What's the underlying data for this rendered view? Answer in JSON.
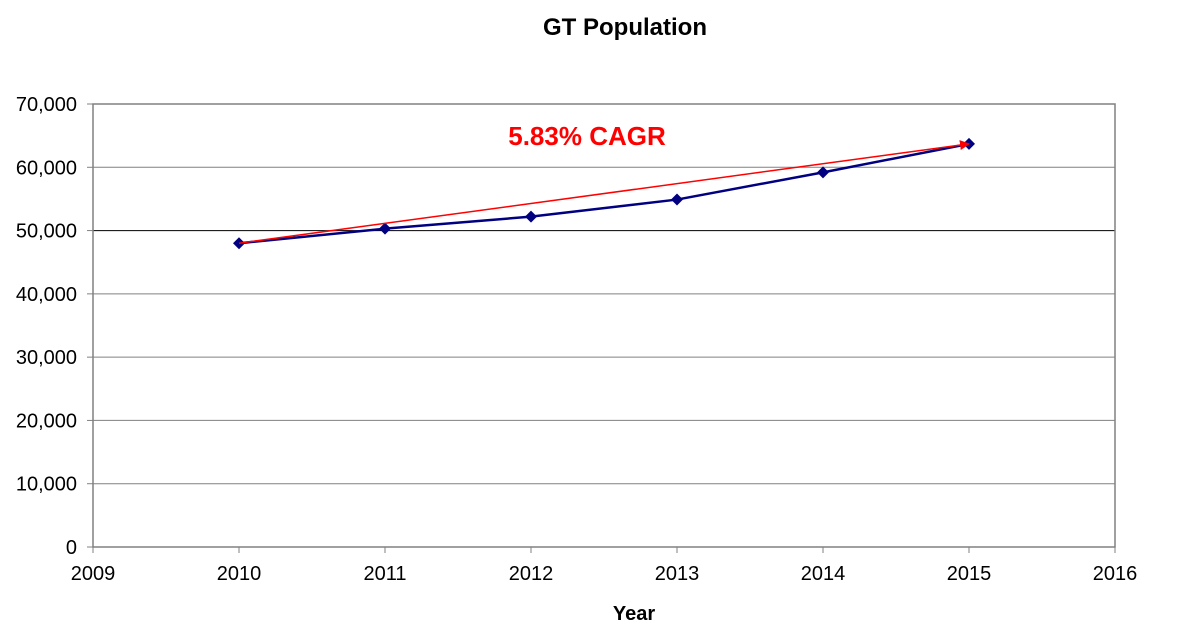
{
  "chart_data": {
    "type": "line",
    "title": "GT Population",
    "xlabel": "Year",
    "ylabel": "",
    "xlim": [
      2009,
      2016
    ],
    "ylim": [
      0,
      70000
    ],
    "x_ticks": [
      "2009",
      "2010",
      "2011",
      "2012",
      "2013",
      "2014",
      "2015",
      "2016"
    ],
    "y_ticks": [
      "0",
      "10,000",
      "20,000",
      "30,000",
      "40,000",
      "50,000",
      "60,000",
      "70,000"
    ],
    "grid": true,
    "legend": "none",
    "series": [
      {
        "x": [
          2010,
          2011,
          2012,
          2013,
          2014,
          2015
        ],
        "values": [
          48000,
          50300,
          52200,
          54900,
          59200,
          63700
        ],
        "color": "#000080",
        "marker": "diamond"
      }
    ],
    "annotations": [
      {
        "text": "5.83% CAGR",
        "color": "#ff0000",
        "arrow_from": [
          2010,
          48000
        ],
        "arrow_to": [
          2015,
          63700
        ]
      }
    ]
  }
}
